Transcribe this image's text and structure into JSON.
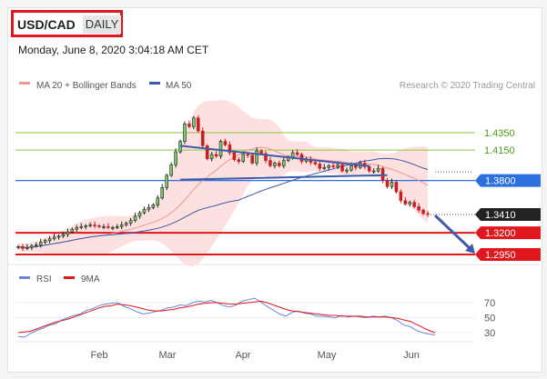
{
  "header": {
    "symbol": "USD/CAD",
    "timeframe": "DAILY",
    "datetime": "Monday, June 8, 2020 3:04:18 AM CET"
  },
  "legend": {
    "ma20_label": "MA 20 + Bollinger Bands",
    "ma50_label": "MA 50",
    "credit": "Research © 2020 Trading Central",
    "rsi_label": "RSI",
    "ma9_label": "9MA"
  },
  "colors": {
    "up": "#7dc96a",
    "down": "#c81e1e",
    "bollinger": "#fdd9d9",
    "ma20": "#f09494",
    "ma50": "#3f5aa8",
    "trendline": "#3f5aa8",
    "support": "#e0171c",
    "resistance": "#2b6fe0",
    "green_level": "#8cc63f",
    "rsi": "#6b86d6",
    "rsi_ma": "#e0171c"
  },
  "chart_data": [
    {
      "type": "candlestick",
      "title": "USD/CAD DAILY",
      "x_ticks": [
        "Feb",
        "Mar",
        "Apr",
        "May",
        "Jun"
      ],
      "ylim": [
        1.29,
        1.46
      ],
      "levels": [
        {
          "label": "1.4350",
          "value": 1.435,
          "kind": "resistance-target"
        },
        {
          "label": "1.4150",
          "value": 1.415,
          "kind": "resistance-target"
        },
        {
          "label": "1.3800",
          "value": 1.38,
          "kind": "pivot"
        },
        {
          "label": "1.3410",
          "value": 1.341,
          "kind": "last-price"
        },
        {
          "label": "1.3200",
          "value": 1.32,
          "kind": "support-target"
        },
        {
          "label": "1.2950",
          "value": 1.295,
          "kind": "support-target"
        }
      ],
      "series": [
        {
          "name": "Close",
          "values": [
            1.304,
            1.302,
            1.303,
            1.305,
            1.306,
            1.309,
            1.311,
            1.313,
            1.315,
            1.316,
            1.318,
            1.321,
            1.324,
            1.326,
            1.327,
            1.328,
            1.329,
            1.328,
            1.327,
            1.327,
            1.326,
            1.326,
            1.327,
            1.329,
            1.331,
            1.334,
            1.339,
            1.343,
            1.347,
            1.349,
            1.352,
            1.36,
            1.372,
            1.386,
            1.398,
            1.413,
            1.425,
            1.445,
            1.442,
            1.452,
            1.437,
            1.42,
            1.405,
            1.41,
            1.408,
            1.425,
            1.421,
            1.412,
            1.404,
            1.402,
            1.41,
            1.409,
            1.4,
            1.414,
            1.411,
            1.403,
            1.397,
            1.4,
            1.397,
            1.403,
            1.407,
            1.412,
            1.41,
            1.402,
            1.404,
            1.401,
            1.399,
            1.394,
            1.395,
            1.397,
            1.396,
            1.398,
            1.391,
            1.392,
            1.397,
            1.395,
            1.4,
            1.396,
            1.391,
            1.391,
            1.394,
            1.38,
            1.373,
            1.378,
            1.367,
            1.357,
            1.353,
            1.355,
            1.35,
            1.346,
            1.342,
            1.341
          ]
        },
        {
          "name": "MA 20",
          "values": []
        },
        {
          "name": "MA 50",
          "values": []
        }
      ]
    },
    {
      "type": "line",
      "title": "RSI",
      "ylim": [
        20,
        80
      ],
      "y_ticks": [
        "70",
        "50",
        "30"
      ],
      "series": [
        {
          "name": "RSI",
          "values": [
            25,
            24,
            29,
            33,
            36,
            40,
            42,
            47,
            50,
            53,
            55,
            60,
            62,
            66,
            68,
            69,
            70,
            65,
            62,
            58,
            55,
            56,
            58,
            60,
            63,
            64,
            67,
            66,
            70,
            72,
            71,
            73,
            70,
            66,
            64,
            67,
            72,
            74,
            76,
            71,
            65,
            60,
            55,
            52,
            57,
            59,
            56,
            55,
            52,
            52,
            51,
            50,
            53,
            51,
            52,
            51,
            50,
            52,
            51,
            52,
            50,
            46,
            40,
            38,
            33,
            30,
            28,
            27
          ]
        },
        {
          "name": "9MA",
          "values": [
            30,
            31,
            32,
            35,
            38,
            41,
            44,
            46,
            48,
            51,
            54,
            57,
            60,
            63,
            65,
            66,
            68,
            67,
            66,
            64,
            62,
            60,
            59,
            59,
            60,
            61,
            63,
            64,
            66,
            68,
            69,
            70,
            70,
            69,
            68,
            68,
            69,
            70,
            71,
            72,
            70,
            67,
            64,
            61,
            59,
            58,
            57,
            56,
            55,
            54,
            53,
            53,
            52,
            52,
            52,
            52,
            51,
            51,
            51,
            51,
            50,
            49,
            47,
            45,
            41,
            37,
            33,
            30
          ]
        }
      ]
    }
  ]
}
